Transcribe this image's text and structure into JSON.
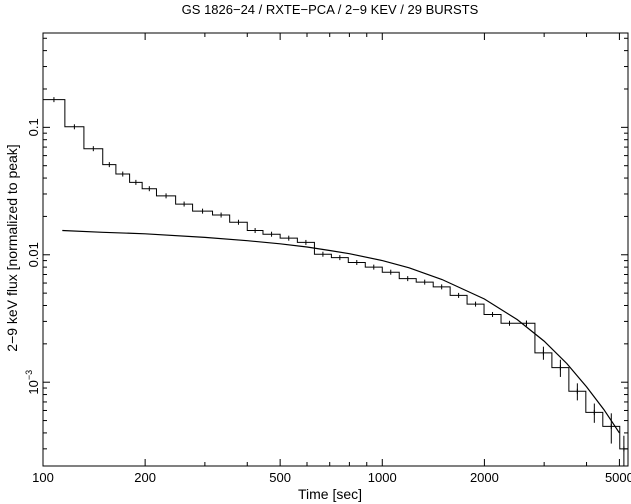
{
  "chart_data": {
    "type": "line",
    "title": "GS 1826−24 / RXTE−PCA / 2−9 KEV / 29 BURSTS",
    "xlabel": "Time [sec]",
    "ylabel": "2−9 keV flux [normalized to peak]",
    "x_scale": "log",
    "y_scale": "log",
    "xlim": [
      100,
      5300
    ],
    "ylim": [
      0.00022,
      0.55
    ],
    "x_ticks": [
      {
        "value": 100,
        "label": "100"
      },
      {
        "value": 200,
        "label": "200"
      },
      {
        "value": 500,
        "label": "500"
      },
      {
        "value": 1000,
        "label": "1000"
      },
      {
        "value": 2000,
        "label": "2000"
      },
      {
        "value": 5000,
        "label": "5000"
      }
    ],
    "y_ticks": [
      {
        "value": 0.1,
        "label": "0.1"
      },
      {
        "value": 0.01,
        "label": "0.01"
      },
      {
        "value": 0.001,
        "label_base": "10",
        "label_exp": "−3"
      }
    ],
    "series": [
      {
        "style": "histogram",
        "bins": [
          {
            "x0": 100,
            "x1": 116,
            "y": 0.165,
            "err": 0.0
          },
          {
            "x0": 116,
            "x1": 132,
            "y": 0.101,
            "err": 0.0
          },
          {
            "x0": 132,
            "x1": 150,
            "y": 0.068,
            "err": 0.0
          },
          {
            "x0": 150,
            "x1": 164,
            "y": 0.051,
            "err": 0.0
          },
          {
            "x0": 164,
            "x1": 180,
            "y": 0.043,
            "err": 0.0
          },
          {
            "x0": 180,
            "x1": 196,
            "y": 0.037,
            "err": 0.0
          },
          {
            "x0": 196,
            "x1": 216,
            "y": 0.033,
            "err": 0.0
          },
          {
            "x0": 216,
            "x1": 246,
            "y": 0.029,
            "err": 0.0
          },
          {
            "x0": 246,
            "x1": 276,
            "y": 0.025,
            "err": 0.0
          },
          {
            "x0": 276,
            "x1": 316,
            "y": 0.022,
            "err": 0.0
          },
          {
            "x0": 316,
            "x1": 355,
            "y": 0.0205,
            "err": 0.0
          },
          {
            "x0": 355,
            "x1": 400,
            "y": 0.018,
            "err": 0.0
          },
          {
            "x0": 400,
            "x1": 445,
            "y": 0.0155,
            "err": 0.0
          },
          {
            "x0": 445,
            "x1": 500,
            "y": 0.0145,
            "err": 0.0
          },
          {
            "x0": 500,
            "x1": 562,
            "y": 0.0135,
            "err": 0.0
          },
          {
            "x0": 562,
            "x1": 631,
            "y": 0.0125,
            "err": 0.0
          },
          {
            "x0": 631,
            "x1": 708,
            "y": 0.0101,
            "err": 0.0
          },
          {
            "x0": 708,
            "x1": 794,
            "y": 0.0095,
            "err": 0.0
          },
          {
            "x0": 794,
            "x1": 891,
            "y": 0.0087,
            "err": 0.0
          },
          {
            "x0": 891,
            "x1": 1000,
            "y": 0.008,
            "err": 0.0
          },
          {
            "x0": 1000,
            "x1": 1122,
            "y": 0.0073,
            "err": 0.0
          },
          {
            "x0": 1122,
            "x1": 1259,
            "y": 0.0065,
            "err": 0.0
          },
          {
            "x0": 1259,
            "x1": 1413,
            "y": 0.0061,
            "err": 0.0
          },
          {
            "x0": 1413,
            "x1": 1585,
            "y": 0.0056,
            "err": 0.0
          },
          {
            "x0": 1585,
            "x1": 1778,
            "y": 0.0048,
            "err": 0.0
          },
          {
            "x0": 1778,
            "x1": 1995,
            "y": 0.0041,
            "err": 0.0
          },
          {
            "x0": 1995,
            "x1": 2239,
            "y": 0.0034,
            "err": 0.0
          },
          {
            "x0": 2239,
            "x1": 2512,
            "y": 0.0029,
            "err": 0.0
          },
          {
            "x0": 2512,
            "x1": 2818,
            "y": 0.0029,
            "err": 0.00015
          },
          {
            "x0": 2818,
            "x1": 3162,
            "y": 0.0017,
            "err": 0.0002
          },
          {
            "x0": 3162,
            "x1": 3548,
            "y": 0.0013,
            "err": 0.0002
          },
          {
            "x0": 3548,
            "x1": 3981,
            "y": 0.00085,
            "err": 0.00013
          },
          {
            "x0": 3981,
            "x1": 4467,
            "y": 0.00058,
            "err": 0.0001
          },
          {
            "x0": 4467,
            "x1": 5012,
            "y": 0.00045,
            "err": 0.00012
          },
          {
            "x0": 5012,
            "x1": 5300,
            "y": 0.0003,
            "err": 8e-05
          }
        ]
      },
      {
        "style": "line",
        "x": [
          114,
          150,
          200,
          300,
          400,
          500,
          600,
          700,
          800,
          1000,
          1200,
          1500,
          2000,
          2500,
          3000,
          3500,
          4000,
          4500,
          5000
        ],
        "y": [
          0.0155,
          0.015,
          0.0146,
          0.0137,
          0.0129,
          0.0122,
          0.0115,
          0.0108,
          0.0102,
          0.009,
          0.0079,
          0.0064,
          0.0045,
          0.0031,
          0.0021,
          0.0014,
          0.00092,
          0.00061,
          0.0004
        ]
      }
    ]
  }
}
